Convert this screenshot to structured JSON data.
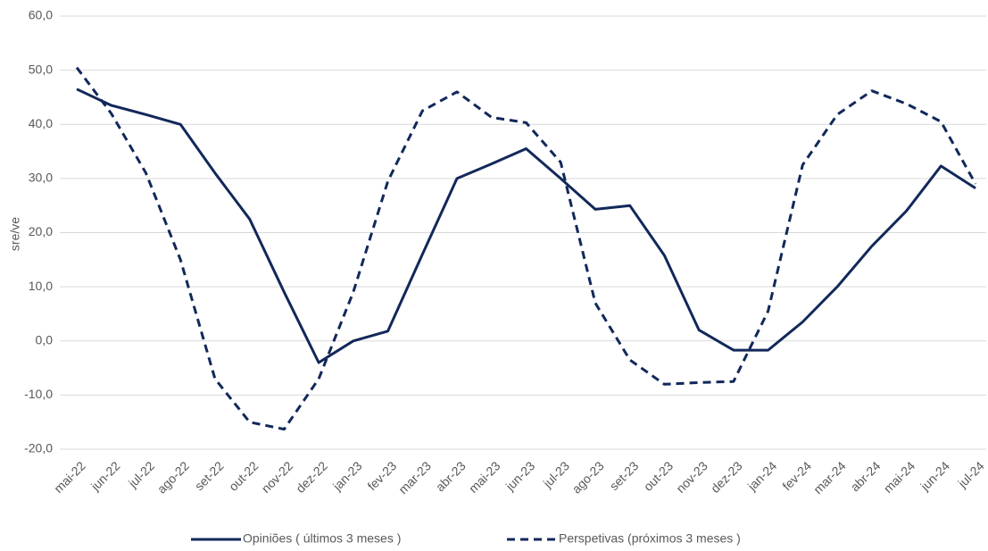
{
  "chart_data": {
    "type": "line",
    "y_label": "sre/ve",
    "categories": [
      "mai-22",
      "jun-22",
      "jul-22",
      "ago-22",
      "set-22",
      "out-22",
      "nov-22",
      "dez-22",
      "jan-23",
      "fev-23",
      "mar-23",
      "abr-23",
      "mai-23",
      "jun-23",
      "jul-23",
      "ago-23",
      "set-23",
      "out-23",
      "nov-23",
      "dez-23",
      "jan-24",
      "fev-24",
      "mar-24",
      "abr-24",
      "mai-24",
      "jun-24",
      "jul-24"
    ],
    "series": [
      {
        "name": "Opiniões ( últimos 3 meses )",
        "color": "#12285a",
        "dash": "solid",
        "values": [
          46.5,
          43.5,
          41.8,
          40,
          31,
          22.5,
          9,
          -4,
          0,
          1.8,
          16,
          30,
          32.7,
          35.5,
          30,
          24.3,
          25,
          15.8,
          2,
          -1.7,
          -1.7,
          3.5,
          10,
          17.5,
          24,
          32.3,
          28.2
        ]
      },
      {
        "name": "Perspetivas (próximos 3 meses )",
        "color": "#12285a",
        "dash": "dashed",
        "values": [
          50.5,
          42,
          31,
          15,
          -7,
          -15,
          -16.3,
          -7,
          9,
          29.5,
          42.5,
          46,
          41.3,
          40.3,
          33,
          7,
          -3.5,
          -8,
          -7.7,
          -7.5,
          5.5,
          32.5,
          41.8,
          46.2,
          43.8,
          40.5,
          29
        ]
      }
    ],
    "ylim": [
      -20,
      60
    ],
    "yticks": [
      {
        "value": -20,
        "label": "-20,0"
      },
      {
        "value": -10,
        "label": "-10,0"
      },
      {
        "value": 0,
        "label": "0,0"
      },
      {
        "value": 10,
        "label": "10,0"
      },
      {
        "value": 20,
        "label": "20,0"
      },
      {
        "value": 30,
        "label": "30,0"
      },
      {
        "value": 40,
        "label": "40,0"
      },
      {
        "value": 50,
        "label": "50,0"
      },
      {
        "value": 60,
        "label": "60,0"
      }
    ],
    "grid": true
  }
}
